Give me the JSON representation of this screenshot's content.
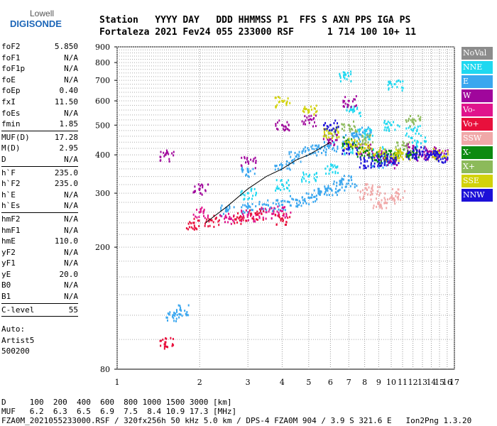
{
  "logo": {
    "line1": "Lowell",
    "line2": "DIGISONDE"
  },
  "header": {
    "line1": "Station   YYYY DAY   DDD HHMMSS P1  FFS S AXN PPS IGA PS",
    "line2": "Fortaleza 2021 Fev24 055 233000 RSF      1 714 100 10+ 11"
  },
  "params": [
    [
      {
        "k": "foF2",
        "v": "5.850"
      },
      {
        "k": "foF1",
        "v": "N/A"
      },
      {
        "k": "foF1p",
        "v": "N/A"
      },
      {
        "k": "foE",
        "v": "N/A"
      },
      {
        "k": "foEp",
        "v": "0.40"
      },
      {
        "k": "fxI",
        "v": "11.50"
      },
      {
        "k": "foEs",
        "v": "N/A"
      },
      {
        "k": "fmin",
        "v": "1.85"
      }
    ],
    [
      {
        "k": "MUF(D)",
        "v": "17.28"
      },
      {
        "k": "M(D)",
        "v": "2.95"
      },
      {
        "k": "D",
        "v": "N/A"
      }
    ],
    [
      {
        "k": "h`F",
        "v": "235.0"
      },
      {
        "k": "h`F2",
        "v": "235.0"
      },
      {
        "k": "h`E",
        "v": "N/A"
      },
      {
        "k": "h`Es",
        "v": "N/A"
      }
    ],
    [
      {
        "k": "hmF2",
        "v": "N/A"
      },
      {
        "k": "hmF1",
        "v": "N/A"
      },
      {
        "k": "hmE",
        "v": "110.0"
      },
      {
        "k": "yF2",
        "v": "N/A"
      },
      {
        "k": "yF1",
        "v": "N/A"
      },
      {
        "k": "yE",
        "v": "20.0"
      },
      {
        "k": "B0",
        "v": "N/A"
      },
      {
        "k": "B1",
        "v": "N/A"
      }
    ],
    [
      {
        "k": "C-level",
        "v": "55"
      }
    ]
  ],
  "auto": {
    "line1": "Auto:",
    "line2": "Artist5",
    "line3": "500200"
  },
  "legend": [
    {
      "label": "NoVal",
      "color": "#8c8c8c"
    },
    {
      "label": "NNE",
      "color": "#1fd8f0"
    },
    {
      "label": "E",
      "color": "#3ba7ef"
    },
    {
      "label": "W",
      "color": "#a0069c"
    },
    {
      "label": "Vo-",
      "color": "#e0148c"
    },
    {
      "label": "Vo+",
      "color": "#e8103c"
    },
    {
      "label": "SSW",
      "color": "#f0a8a8"
    },
    {
      "label": "X-",
      "color": "#0c8a10"
    },
    {
      "label": "X+",
      "color": "#8cba5a"
    },
    {
      "label": "SSE",
      "color": "#d2d20a"
    },
    {
      "label": "NNW",
      "color": "#1c10d8"
    }
  ],
  "footer": {
    "line1": "D     100  200  400  600  800 1000 1500 3000 [km]",
    "line2": "MUF   6.2  6.3  6.5  6.9  7.5  8.4 10.9 17.3 [MHz]",
    "line3": "FZA0M_2021055233000.RSF / 320fx256h 50 kHz 5.0 km / DPS-4 FZA0M 904 / 3.9 S 321.6 E   Ion2Png 1.3.20"
  },
  "chart_data": {
    "type": "scatter",
    "title": "",
    "xlabel": "",
    "ylabel": "",
    "xlim": [
      1,
      17
    ],
    "ylim": [
      80,
      900
    ],
    "x_scale": "log",
    "y_scale": "log",
    "x_ticks": [
      1,
      2,
      3,
      4,
      5,
      6,
      7,
      8,
      9,
      10,
      11,
      12,
      13,
      14,
      15,
      16,
      17
    ],
    "y_ticks": [
      80,
      200,
      300,
      400,
      500,
      600,
      700,
      800,
      900
    ],
    "grid": true,
    "legend_position": "right",
    "series": [
      {
        "name": "E",
        "color": "#3ba7ef",
        "points": [
          [
            2.5,
            265
          ],
          [
            3,
            270
          ],
          [
            3.5,
            275
          ],
          [
            4,
            275
          ],
          [
            4.5,
            285
          ],
          [
            5,
            290
          ],
          [
            5.5,
            300
          ],
          [
            6,
            310
          ],
          [
            6.5,
            320
          ],
          [
            7,
            330
          ],
          [
            3,
            355
          ],
          [
            4,
            370
          ],
          [
            4.5,
            395
          ],
          [
            5,
            415
          ],
          [
            5.5,
            420
          ],
          [
            6,
            430
          ],
          [
            7,
            450
          ],
          [
            7.5,
            460
          ],
          [
            8,
            480
          ],
          [
            9,
            380
          ],
          [
            10,
            390
          ],
          [
            1.6,
            120
          ],
          [
            1.7,
            125
          ]
        ]
      },
      {
        "name": "NNE",
        "color": "#1fd8f0",
        "points": [
          [
            3,
            300
          ],
          [
            4,
            320
          ],
          [
            5,
            340
          ],
          [
            6,
            360
          ],
          [
            7,
            420
          ],
          [
            8,
            470
          ],
          [
            9,
            410
          ],
          [
            10,
            500
          ],
          [
            10.3,
            680
          ],
          [
            12,
            480
          ],
          [
            12.5,
            440
          ],
          [
            6.8,
            730
          ],
          [
            7.2,
            560
          ]
        ]
      },
      {
        "name": "W",
        "color": "#a0069c",
        "points": [
          [
            1.5,
            400
          ],
          [
            2,
            310
          ],
          [
            3,
            380
          ],
          [
            4,
            500
          ],
          [
            5,
            520
          ],
          [
            6,
            450
          ],
          [
            7,
            600
          ],
          [
            8,
            420
          ],
          [
            9,
            400
          ],
          [
            10,
            380
          ],
          [
            12,
            420
          ],
          [
            13,
            400
          ],
          [
            14,
            410
          ],
          [
            15,
            400
          ]
        ]
      },
      {
        "name": "Vo-",
        "color": "#e0148c",
        "points": [
          [
            2,
            260
          ],
          [
            2.5,
            250
          ],
          [
            3,
            255
          ],
          [
            3.5,
            260
          ],
          [
            4,
            262
          ]
        ]
      },
      {
        "name": "Vo+",
        "color": "#e8103c",
        "points": [
          [
            1.9,
            240
          ],
          [
            2.2,
            245
          ],
          [
            2.8,
            250
          ],
          [
            3.2,
            258
          ],
          [
            4,
            248
          ],
          [
            1.5,
            98
          ]
        ]
      },
      {
        "name": "SSW",
        "color": "#f0a8a8",
        "points": [
          [
            8,
            300
          ],
          [
            9,
            280
          ],
          [
            10,
            290
          ],
          [
            10.5,
            300
          ],
          [
            8.5,
            310
          ]
        ]
      },
      {
        "name": "X-",
        "color": "#0c8a10",
        "points": [
          [
            7,
            440
          ],
          [
            8,
            410
          ],
          [
            9,
            395
          ],
          [
            10,
            400
          ],
          [
            11,
            405
          ],
          [
            12,
            410
          ]
        ]
      },
      {
        "name": "X+",
        "color": "#8cba5a",
        "points": [
          [
            6,
            480
          ],
          [
            7,
            500
          ],
          [
            8,
            450
          ],
          [
            11,
            430
          ],
          [
            12,
            520
          ]
        ]
      },
      {
        "name": "SSE",
        "color": "#d2d20a",
        "points": [
          [
            4,
            600
          ],
          [
            5,
            560
          ],
          [
            6,
            470
          ],
          [
            7,
            440
          ],
          [
            8,
            420
          ],
          [
            9,
            410
          ],
          [
            10,
            395
          ],
          [
            11,
            405
          ],
          [
            15,
            405
          ]
        ]
      },
      {
        "name": "NNW",
        "color": "#1c10d8",
        "points": [
          [
            6,
            500
          ],
          [
            7,
            420
          ],
          [
            8,
            380
          ],
          [
            9,
            385
          ],
          [
            10,
            390
          ],
          [
            12,
            400
          ],
          [
            13,
            410
          ],
          [
            14,
            400
          ],
          [
            15,
            395
          ]
        ]
      }
    ],
    "trace": [
      [
        2.1,
        240
      ],
      [
        2.5,
        270
      ],
      [
        3,
        310
      ],
      [
        3.5,
        340
      ],
      [
        4,
        360
      ],
      [
        4.5,
        385
      ],
      [
        5,
        400
      ],
      [
        5.5,
        420
      ],
      [
        6,
        440
      ]
    ]
  }
}
